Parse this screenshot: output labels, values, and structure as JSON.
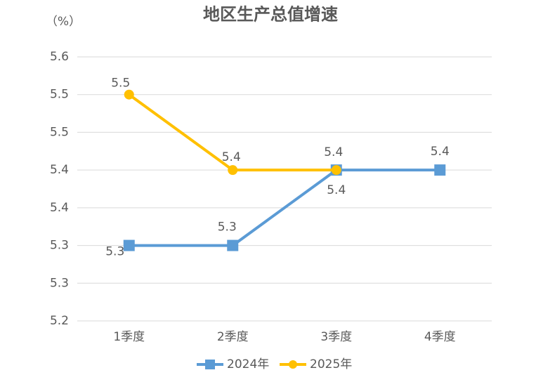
{
  "chart_data": {
    "type": "line",
    "title": "地区生产总值增速",
    "y_unit_label": "（%）",
    "categories": [
      "1季度",
      "2季度",
      "3季度",
      "4季度"
    ],
    "series": [
      {
        "name": "2024年",
        "color": "#5b9bd5",
        "marker": "square",
        "values": [
          5.3,
          5.3,
          5.4,
          5.4
        ]
      },
      {
        "name": "2025年",
        "color": "#ffc000",
        "marker": "circle",
        "values": [
          5.5,
          5.4,
          5.4,
          null
        ]
      }
    ],
    "ylim": [
      5.2,
      5.55
    ],
    "yticks": [
      5.2,
      {
        "value": 5.25,
        "label": "5.3"
      },
      5.3,
      {
        "value": 5.35,
        "label": "5.4"
      },
      5.4,
      {
        "value": 5.45,
        "label": "5.5"
      },
      5.5,
      {
        "value": 5.55,
        "label": "5.6"
      }
    ],
    "grid": true,
    "legend": "bottom"
  }
}
